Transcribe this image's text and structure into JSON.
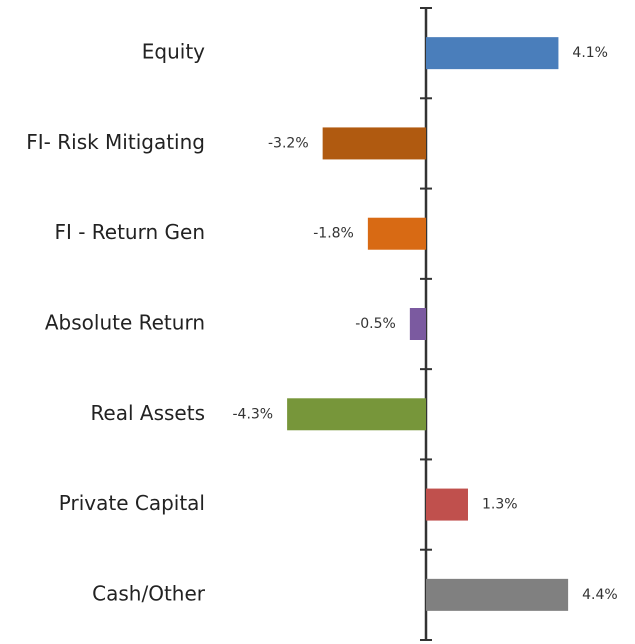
{
  "chart_data": {
    "type": "bar",
    "orientation": "horizontal",
    "categories": [
      "Equity",
      "FI- Risk Mitigating",
      "FI - Return Gen",
      "Absolute Return",
      "Real Assets",
      "Private Capital",
      "Cash/Other"
    ],
    "values": [
      4.1,
      -3.2,
      -1.8,
      -0.5,
      -4.3,
      1.3,
      4.4
    ],
    "value_labels": [
      "4.1%",
      "-3.2%",
      "-1.8%",
      "-0.5%",
      "-4.3%",
      "1.3%",
      "4.4%"
    ],
    "colors": [
      "#4a7ebb",
      "#b05a10",
      "#d86a14",
      "#7b5aa0",
      "#77963a",
      "#c0504d",
      "#808080"
    ]
  }
}
